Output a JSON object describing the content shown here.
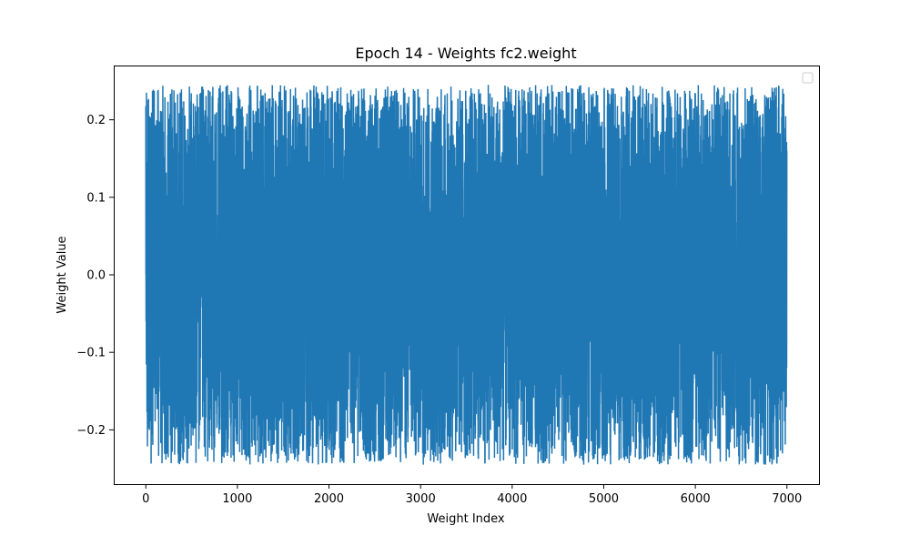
{
  "chart_data": {
    "type": "line",
    "title": "Epoch 14 - Weights fc2.weight",
    "xlabel": "Weight Index",
    "ylabel": "Weight Value",
    "xlim": [
      -350,
      7350
    ],
    "ylim": [
      -0.27,
      0.27
    ],
    "xticks": [
      0,
      1000,
      2000,
      3000,
      4000,
      5000,
      6000,
      7000
    ],
    "yticks": [
      -0.2,
      -0.1,
      0.0,
      0.1,
      0.2
    ],
    "xtick_labels": [
      "0",
      "1000",
      "2000",
      "3000",
      "4000",
      "5000",
      "6000",
      "7000"
    ],
    "ytick_labels": [
      "−0.2",
      "−0.1",
      "0.0",
      "0.1",
      "0.2"
    ],
    "grid": false,
    "legend": {
      "placement": "top-right",
      "entries": []
    },
    "series": [
      {
        "color": "#1f77b4",
        "n_points": 7000,
        "x_start": 0,
        "x_end": 6999,
        "value_range": [
          -0.245,
          0.245
        ],
        "distribution": "uniform"
      }
    ]
  }
}
